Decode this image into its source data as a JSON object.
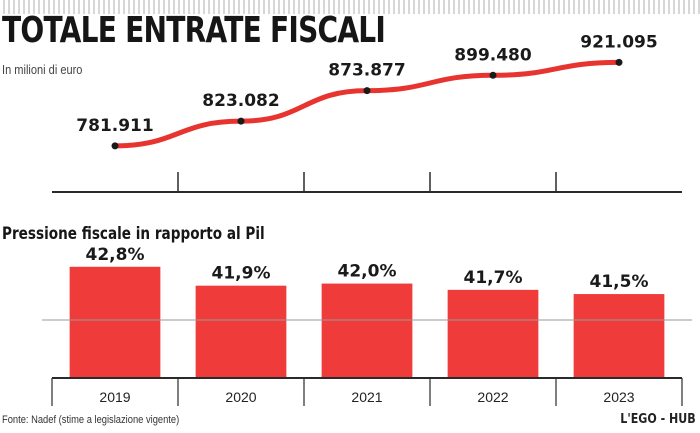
{
  "header": {
    "title": "TOTALE ENTRATE FISCALI",
    "subtitle": "In milioni di euro"
  },
  "section2": {
    "title": "Pressione fiscale in rapporto al Pil"
  },
  "footer": {
    "source": "Fonte: Nadef (stime a legislazione vigente)",
    "brand": "L'EGO - HUB"
  },
  "colors": {
    "line": "#e8342f",
    "bar": "#ef3b39",
    "axis": "#2a2a2a",
    "grid": "#9a9a9a"
  },
  "chart_data": [
    {
      "type": "line",
      "title": "TOTALE ENTRATE FISCALI",
      "ylabel": "In milioni di euro",
      "categories": [
        "2019",
        "2020",
        "2021",
        "2022",
        "2023"
      ],
      "values": [
        781911,
        823082,
        873877,
        899480,
        921095
      ],
      "labels": [
        "781.911",
        "823.082",
        "873.877",
        "899.480",
        "921.095"
      ],
      "ylim": [
        700000,
        950000
      ]
    },
    {
      "type": "bar",
      "title": "Pressione fiscale in rapporto al Pil",
      "categories": [
        "2019",
        "2020",
        "2021",
        "2022",
        "2023"
      ],
      "values": [
        42.8,
        41.9,
        42.0,
        41.7,
        41.5
      ],
      "labels": [
        "42,8%",
        "41,9%",
        "42,0%",
        "41,7%",
        "41,5%"
      ],
      "ylim": [
        37.5,
        43.6
      ]
    }
  ]
}
